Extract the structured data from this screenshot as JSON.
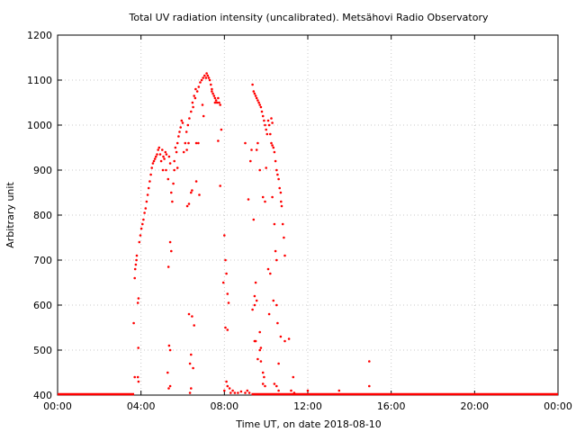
{
  "chart_data": {
    "type": "scatter",
    "title": "Total UV radiation intensity (uncalibrated). Metsähovi Radio Observatory",
    "xlabel": "Time UT, on date 2018-08-10",
    "ylabel": "Arbitrary unit",
    "xlim_hours": [
      0,
      24
    ],
    "ylim": [
      400,
      1200
    ],
    "x_ticks": [
      {
        "hours": 0,
        "label": "00:00"
      },
      {
        "hours": 4,
        "label": "04:00"
      },
      {
        "hours": 8,
        "label": "08:00"
      },
      {
        "hours": 12,
        "label": "12:00"
      },
      {
        "hours": 16,
        "label": "16:00"
      },
      {
        "hours": 20,
        "label": "20:00"
      },
      {
        "hours": 24,
        "label": "00:00"
      }
    ],
    "y_ticks": [
      400,
      500,
      600,
      700,
      800,
      900,
      1000,
      1100,
      1200
    ],
    "grid": true,
    "marker_color": "#ff0000",
    "series": [
      {
        "baseline_segments": [
          [
            0.0,
            3.67
          ],
          [
            9.3,
            24.0
          ]
        ],
        "baseline_value": 400,
        "points": [
          [
            3.65,
            560
          ],
          [
            3.7,
            660
          ],
          [
            3.72,
            680
          ],
          [
            3.75,
            690
          ],
          [
            3.78,
            700
          ],
          [
            3.8,
            710
          ],
          [
            3.85,
            605
          ],
          [
            3.88,
            615
          ],
          [
            3.87,
            505
          ],
          [
            3.7,
            440
          ],
          [
            3.85,
            440
          ],
          [
            3.88,
            430
          ],
          [
            3.92,
            740
          ],
          [
            3.97,
            755
          ],
          [
            4.02,
            770
          ],
          [
            4.07,
            780
          ],
          [
            4.12,
            790
          ],
          [
            4.17,
            805
          ],
          [
            4.22,
            815
          ],
          [
            4.27,
            830
          ],
          [
            4.32,
            845
          ],
          [
            4.37,
            860
          ],
          [
            4.42,
            875
          ],
          [
            4.47,
            890
          ],
          [
            4.52,
            905
          ],
          [
            4.57,
            915
          ],
          [
            4.62,
            920
          ],
          [
            4.67,
            925
          ],
          [
            4.72,
            930
          ],
          [
            4.77,
            935
          ],
          [
            4.82,
            945
          ],
          [
            4.87,
            950
          ],
          [
            4.92,
            935
          ],
          [
            4.97,
            920
          ],
          [
            5.02,
            945
          ],
          [
            5.07,
            930
          ],
          [
            5.12,
            925
          ],
          [
            5.17,
            940
          ],
          [
            5.22,
            935
          ],
          [
            5.05,
            900
          ],
          [
            5.2,
            900
          ],
          [
            5.3,
            880
          ],
          [
            5.35,
            930
          ],
          [
            5.4,
            915
          ],
          [
            5.45,
            850
          ],
          [
            5.5,
            830
          ],
          [
            5.55,
            870
          ],
          [
            5.6,
            900
          ],
          [
            5.65,
            950
          ],
          [
            5.7,
            940
          ],
          [
            5.75,
            960
          ],
          [
            5.8,
            975
          ],
          [
            5.85,
            985
          ],
          [
            5.9,
            995
          ],
          [
            5.95,
            1010
          ],
          [
            6.0,
            1005
          ],
          [
            5.6,
            920
          ],
          [
            5.75,
            905
          ],
          [
            5.4,
            740
          ],
          [
            5.45,
            720
          ],
          [
            5.32,
            685
          ],
          [
            5.35,
            510
          ],
          [
            5.4,
            500
          ],
          [
            5.28,
            450
          ],
          [
            5.33,
            415
          ],
          [
            5.4,
            420
          ],
          [
            6.05,
            940
          ],
          [
            6.12,
            960
          ],
          [
            6.18,
            985
          ],
          [
            6.25,
            1000
          ],
          [
            6.32,
            1015
          ],
          [
            6.4,
            1030
          ],
          [
            6.47,
            1050
          ],
          [
            6.55,
            1065
          ],
          [
            6.62,
            1080
          ],
          [
            6.7,
            1075
          ],
          [
            6.77,
            1085
          ],
          [
            6.84,
            1095
          ],
          [
            6.91,
            1100
          ],
          [
            6.98,
            1105
          ],
          [
            7.05,
            1110
          ],
          [
            7.12,
            1105
          ],
          [
            6.2,
            945
          ],
          [
            6.28,
            960
          ],
          [
            6.5,
            1040
          ],
          [
            6.6,
            1060
          ],
          [
            6.22,
            820
          ],
          [
            6.3,
            825
          ],
          [
            6.45,
            855
          ],
          [
            6.4,
            850
          ],
          [
            6.65,
            875
          ],
          [
            6.8,
            845
          ],
          [
            6.65,
            960
          ],
          [
            6.75,
            960
          ],
          [
            6.95,
            1045
          ],
          [
            7.0,
            1020
          ],
          [
            6.3,
            580
          ],
          [
            6.45,
            575
          ],
          [
            6.55,
            555
          ],
          [
            6.4,
            490
          ],
          [
            6.35,
            470
          ],
          [
            6.5,
            460
          ],
          [
            6.4,
            415
          ],
          [
            6.35,
            405
          ],
          [
            7.15,
            1115
          ],
          [
            7.2,
            1110
          ],
          [
            7.25,
            1105
          ],
          [
            7.3,
            1100
          ],
          [
            7.35,
            1090
          ],
          [
            7.4,
            1080
          ],
          [
            7.45,
            1070
          ],
          [
            7.5,
            1065
          ],
          [
            7.55,
            1060
          ],
          [
            7.6,
            1055
          ],
          [
            7.65,
            1050
          ],
          [
            7.7,
            1060
          ],
          [
            7.75,
            1050
          ],
          [
            7.8,
            1045
          ],
          [
            7.4,
            1075
          ],
          [
            7.55,
            1050
          ],
          [
            7.7,
            965
          ],
          [
            7.85,
            990
          ],
          [
            7.8,
            865
          ],
          [
            7.95,
            650
          ],
          [
            8.0,
            755
          ],
          [
            8.05,
            700
          ],
          [
            8.1,
            670
          ],
          [
            8.15,
            625
          ],
          [
            8.2,
            605
          ],
          [
            8.05,
            550
          ],
          [
            8.15,
            545
          ],
          [
            8.1,
            430
          ],
          [
            8.15,
            420
          ],
          [
            8.0,
            410
          ],
          [
            8.25,
            415
          ],
          [
            8.3,
            405
          ],
          [
            8.4,
            410
          ],
          [
            8.5,
            405
          ],
          [
            8.65,
            405
          ],
          [
            8.8,
            408
          ],
          [
            9.0,
            405
          ],
          [
            9.1,
            410
          ],
          [
            9.2,
            405
          ],
          [
            9.0,
            960
          ],
          [
            9.15,
            835
          ],
          [
            9.25,
            920
          ],
          [
            9.3,
            945
          ],
          [
            9.35,
            1090
          ],
          [
            9.4,
            1075
          ],
          [
            9.45,
            1070
          ],
          [
            9.5,
            1065
          ],
          [
            9.55,
            1060
          ],
          [
            9.6,
            1055
          ],
          [
            9.65,
            1050
          ],
          [
            9.7,
            1045
          ],
          [
            9.75,
            1040
          ],
          [
            9.8,
            1030
          ],
          [
            9.85,
            1020
          ],
          [
            9.9,
            1010
          ],
          [
            9.95,
            1000
          ],
          [
            10.0,
            990
          ],
          [
            10.05,
            980
          ],
          [
            9.4,
            790
          ],
          [
            9.55,
            945
          ],
          [
            9.6,
            960
          ],
          [
            9.7,
            900
          ],
          [
            9.85,
            840
          ],
          [
            9.95,
            830
          ],
          [
            10.0,
            905
          ],
          [
            9.5,
            650
          ],
          [
            9.45,
            620
          ],
          [
            9.55,
            610
          ],
          [
            9.45,
            600
          ],
          [
            9.35,
            590
          ],
          [
            9.7,
            540
          ],
          [
            9.5,
            520
          ],
          [
            9.7,
            500
          ],
          [
            9.6,
            480
          ],
          [
            9.75,
            475
          ],
          [
            9.85,
            450
          ],
          [
            9.9,
            440
          ],
          [
            9.85,
            425
          ],
          [
            9.95,
            420
          ],
          [
            9.45,
            520
          ],
          [
            9.75,
            505
          ],
          [
            10.1,
            1010
          ],
          [
            10.15,
            1000
          ],
          [
            10.2,
            980
          ],
          [
            10.25,
            960
          ],
          [
            10.3,
            955
          ],
          [
            10.35,
            950
          ],
          [
            10.25,
            1015
          ],
          [
            10.3,
            1005
          ],
          [
            10.4,
            940
          ],
          [
            10.45,
            920
          ],
          [
            10.5,
            900
          ],
          [
            10.55,
            890
          ],
          [
            10.6,
            880
          ],
          [
            10.65,
            860
          ],
          [
            10.7,
            850
          ],
          [
            10.72,
            830
          ],
          [
            10.75,
            820
          ],
          [
            10.8,
            780
          ],
          [
            10.85,
            750
          ],
          [
            10.9,
            710
          ],
          [
            10.3,
            840
          ],
          [
            10.4,
            780
          ],
          [
            10.45,
            720
          ],
          [
            10.5,
            700
          ],
          [
            10.1,
            680
          ],
          [
            10.2,
            670
          ],
          [
            10.35,
            610
          ],
          [
            10.5,
            600
          ],
          [
            10.15,
            580
          ],
          [
            10.55,
            560
          ],
          [
            10.7,
            530
          ],
          [
            10.6,
            470
          ],
          [
            10.9,
            520
          ],
          [
            11.1,
            525
          ],
          [
            11.3,
            440
          ],
          [
            11.35,
            405
          ],
          [
            11.2,
            410
          ],
          [
            10.4,
            425
          ],
          [
            10.5,
            420
          ],
          [
            10.6,
            410
          ]
        ],
        "late_points": [
          [
            12.0,
            410
          ],
          [
            13.5,
            410
          ],
          [
            14.95,
            475
          ],
          [
            14.95,
            420
          ]
        ]
      }
    ]
  }
}
